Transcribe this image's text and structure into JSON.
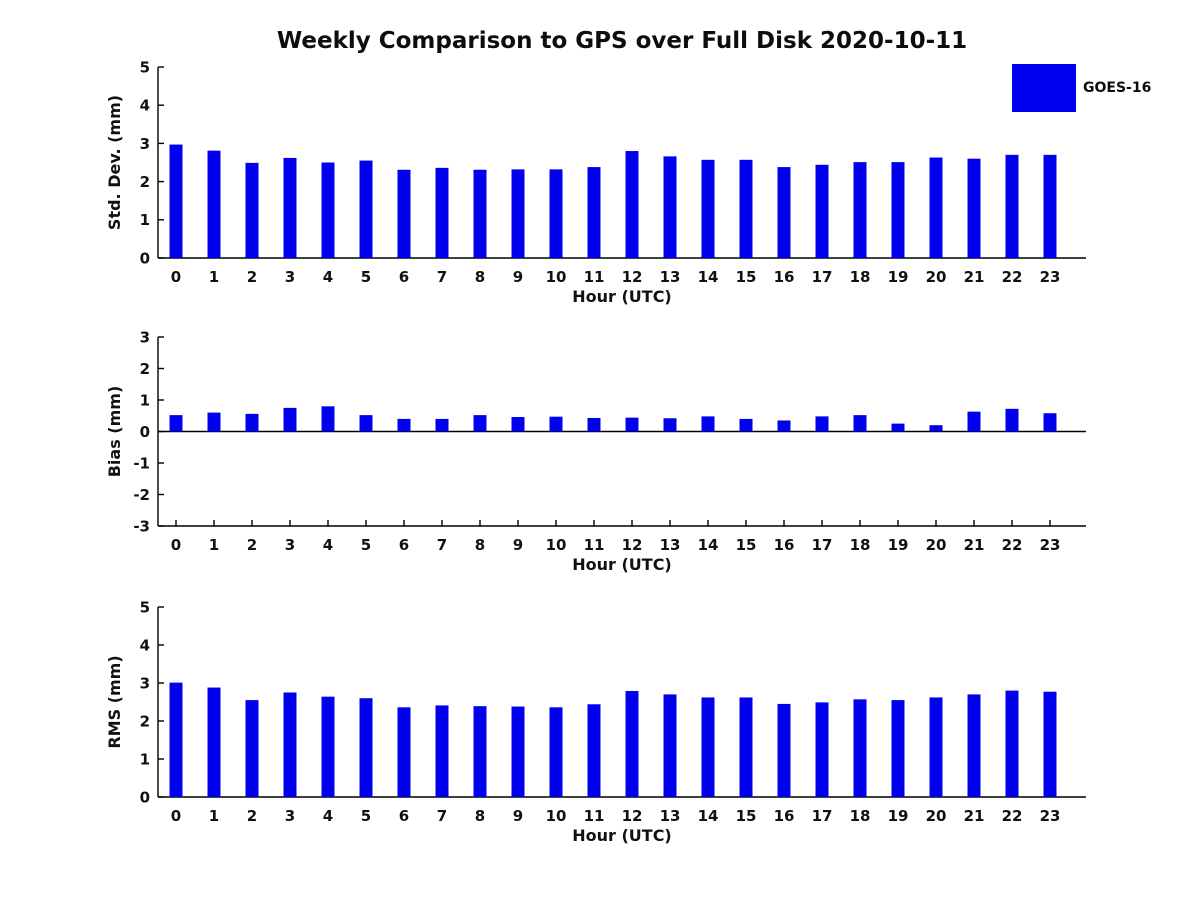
{
  "figure": {
    "title": "Weekly Comparison to GPS over Full Disk 2020-10-11",
    "background_color": "#ffffff",
    "text_color": "#111111",
    "axis_color": "#000000",
    "accent_color": "#0000EE"
  },
  "legend": {
    "label": "GOES-16",
    "swatch_color": "#0000EE",
    "position": "upper-right"
  },
  "chart_data": [
    {
      "type": "bar",
      "name": "std-dev",
      "title": "",
      "xlabel": "Hour (UTC)",
      "ylabel": "Std. Dev. (mm)",
      "ylim": [
        0,
        5
      ],
      "yticks": [
        0,
        1,
        2,
        3,
        4,
        5
      ],
      "grid": false,
      "zero_line": false,
      "x_ticks_visible": false,
      "categories": [
        0,
        1,
        2,
        3,
        4,
        5,
        6,
        7,
        8,
        9,
        10,
        11,
        12,
        13,
        14,
        15,
        16,
        17,
        18,
        19,
        20,
        21,
        22,
        23
      ],
      "series": [
        {
          "name": "GOES-16",
          "color": "#0000EE",
          "values": [
            2.97,
            2.81,
            2.49,
            2.62,
            2.5,
            2.55,
            2.31,
            2.36,
            2.31,
            2.32,
            2.32,
            2.38,
            2.8,
            2.66,
            2.57,
            2.57,
            2.38,
            2.44,
            2.51,
            2.51,
            2.63,
            2.6,
            2.7,
            2.7
          ]
        }
      ]
    },
    {
      "type": "bar",
      "name": "bias",
      "title": "",
      "xlabel": "Hour (UTC)",
      "ylabel": "Bias (mm)",
      "ylim": [
        -3,
        3
      ],
      "yticks": [
        -3,
        -2,
        -1,
        0,
        1,
        2,
        3
      ],
      "grid": false,
      "zero_line": true,
      "x_ticks_visible": true,
      "categories": [
        0,
        1,
        2,
        3,
        4,
        5,
        6,
        7,
        8,
        9,
        10,
        11,
        12,
        13,
        14,
        15,
        16,
        17,
        18,
        19,
        20,
        21,
        22,
        23
      ],
      "series": [
        {
          "name": "GOES-16",
          "color": "#0000EE",
          "values": [
            0.52,
            0.6,
            0.56,
            0.75,
            0.8,
            0.52,
            0.4,
            0.4,
            0.52,
            0.46,
            0.47,
            0.43,
            0.44,
            0.42,
            0.48,
            0.4,
            0.35,
            0.48,
            0.52,
            0.25,
            0.2,
            0.63,
            0.72,
            0.58
          ]
        }
      ]
    },
    {
      "type": "bar",
      "name": "rms",
      "title": "",
      "xlabel": "Hour (UTC)",
      "ylabel": "RMS (mm)",
      "ylim": [
        0,
        5
      ],
      "yticks": [
        0,
        1,
        2,
        3,
        4,
        5
      ],
      "grid": false,
      "zero_line": false,
      "x_ticks_visible": false,
      "categories": [
        0,
        1,
        2,
        3,
        4,
        5,
        6,
        7,
        8,
        9,
        10,
        11,
        12,
        13,
        14,
        15,
        16,
        17,
        18,
        19,
        20,
        21,
        22,
        23
      ],
      "series": [
        {
          "name": "GOES-16",
          "color": "#0000EE",
          "values": [
            3.01,
            2.88,
            2.55,
            2.75,
            2.64,
            2.6,
            2.36,
            2.41,
            2.39,
            2.38,
            2.36,
            2.44,
            2.79,
            2.7,
            2.62,
            2.62,
            2.45,
            2.49,
            2.57,
            2.55,
            2.62,
            2.7,
            2.8,
            2.77
          ]
        }
      ]
    }
  ]
}
